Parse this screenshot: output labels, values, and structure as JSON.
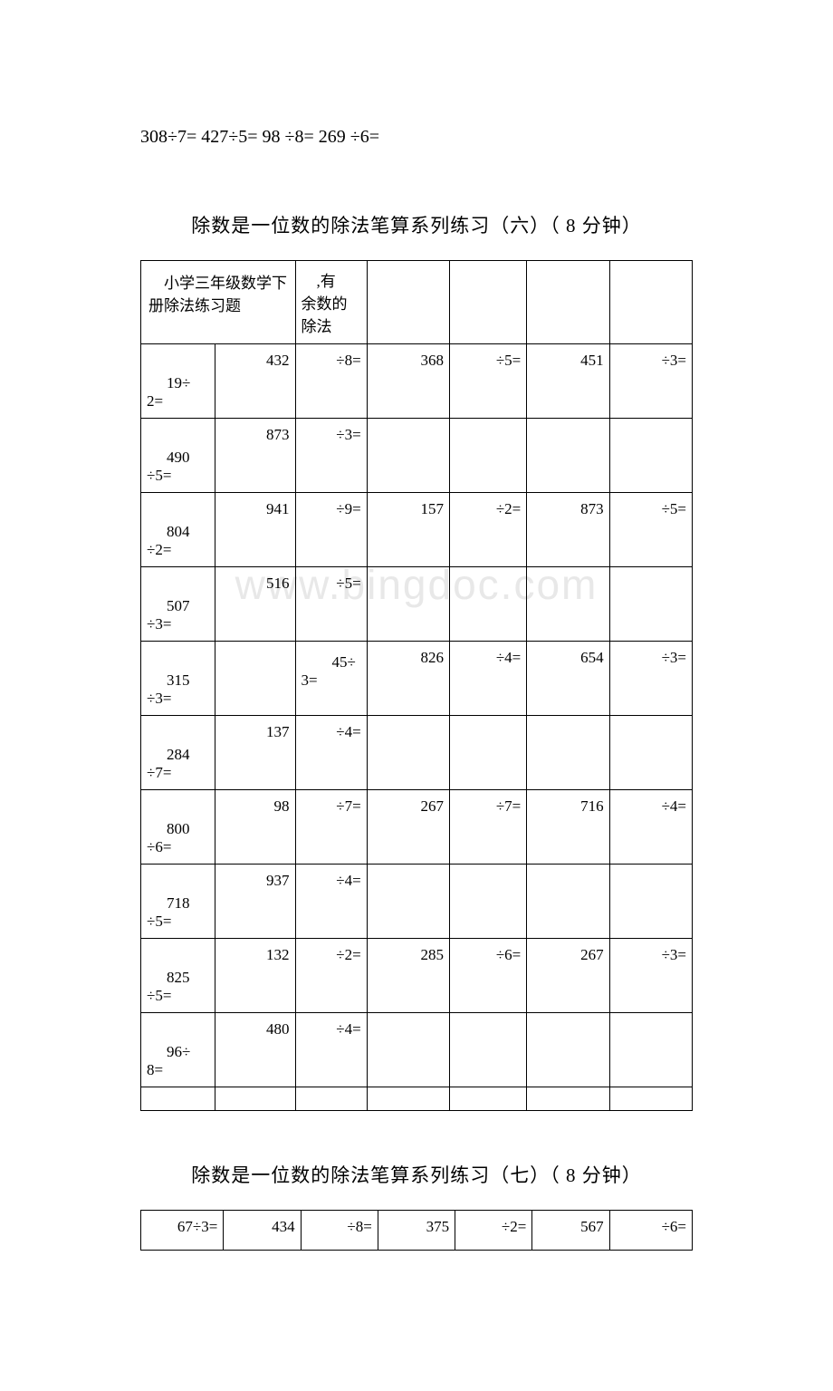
{
  "watermark": "www.bingdoc.com",
  "top_equations": "308÷7= 427÷5= 98 ÷8= 269 ÷6=",
  "section6": {
    "title": "除数是一位数的除法笔算系列练习（六）（ 8 分钟）",
    "header_cell1": "　小学三年级数学下册除法练习题",
    "header_cell2_line1": "　,有",
    "header_cell2_line2": "余数的",
    "header_cell2_line3": "除法",
    "rows": [
      [
        "19÷2=",
        "432",
        "÷8=",
        "368",
        "÷5=",
        "451",
        "÷3="
      ],
      [
        "490 ÷5=",
        "873",
        "÷3=",
        "",
        "",
        "",
        ""
      ],
      [
        "804 ÷2=",
        "941",
        "÷9=",
        "157",
        "÷2=",
        "873",
        "÷5="
      ],
      [
        "507 ÷3=",
        "516",
        "÷5=",
        "",
        "",
        "",
        ""
      ],
      [
        "315 ÷3=",
        "",
        "45÷3=",
        "826",
        "÷4=",
        "654",
        "÷3="
      ],
      [
        "284 ÷7=",
        "137",
        "÷4=",
        "",
        "",
        "",
        ""
      ],
      [
        "800 ÷6=",
        "98",
        "÷7=",
        "267",
        "÷7=",
        "716",
        "÷4="
      ],
      [
        "718 ÷5=",
        "937",
        "÷4=",
        "",
        "",
        "",
        ""
      ],
      [
        "825 ÷5=",
        "132",
        "÷2=",
        "285",
        "÷6=",
        "267",
        "÷3="
      ],
      [
        "96÷8=",
        "480",
        "÷4=",
        "",
        "",
        "",
        ""
      ]
    ]
  },
  "section7": {
    "title": "除数是一位数的除法笔算系列练习（七）（ 8 分钟）",
    "rows": [
      [
        "67÷3=",
        "434",
        "÷8=",
        "375",
        "÷2=",
        "567",
        "÷6="
      ]
    ]
  }
}
